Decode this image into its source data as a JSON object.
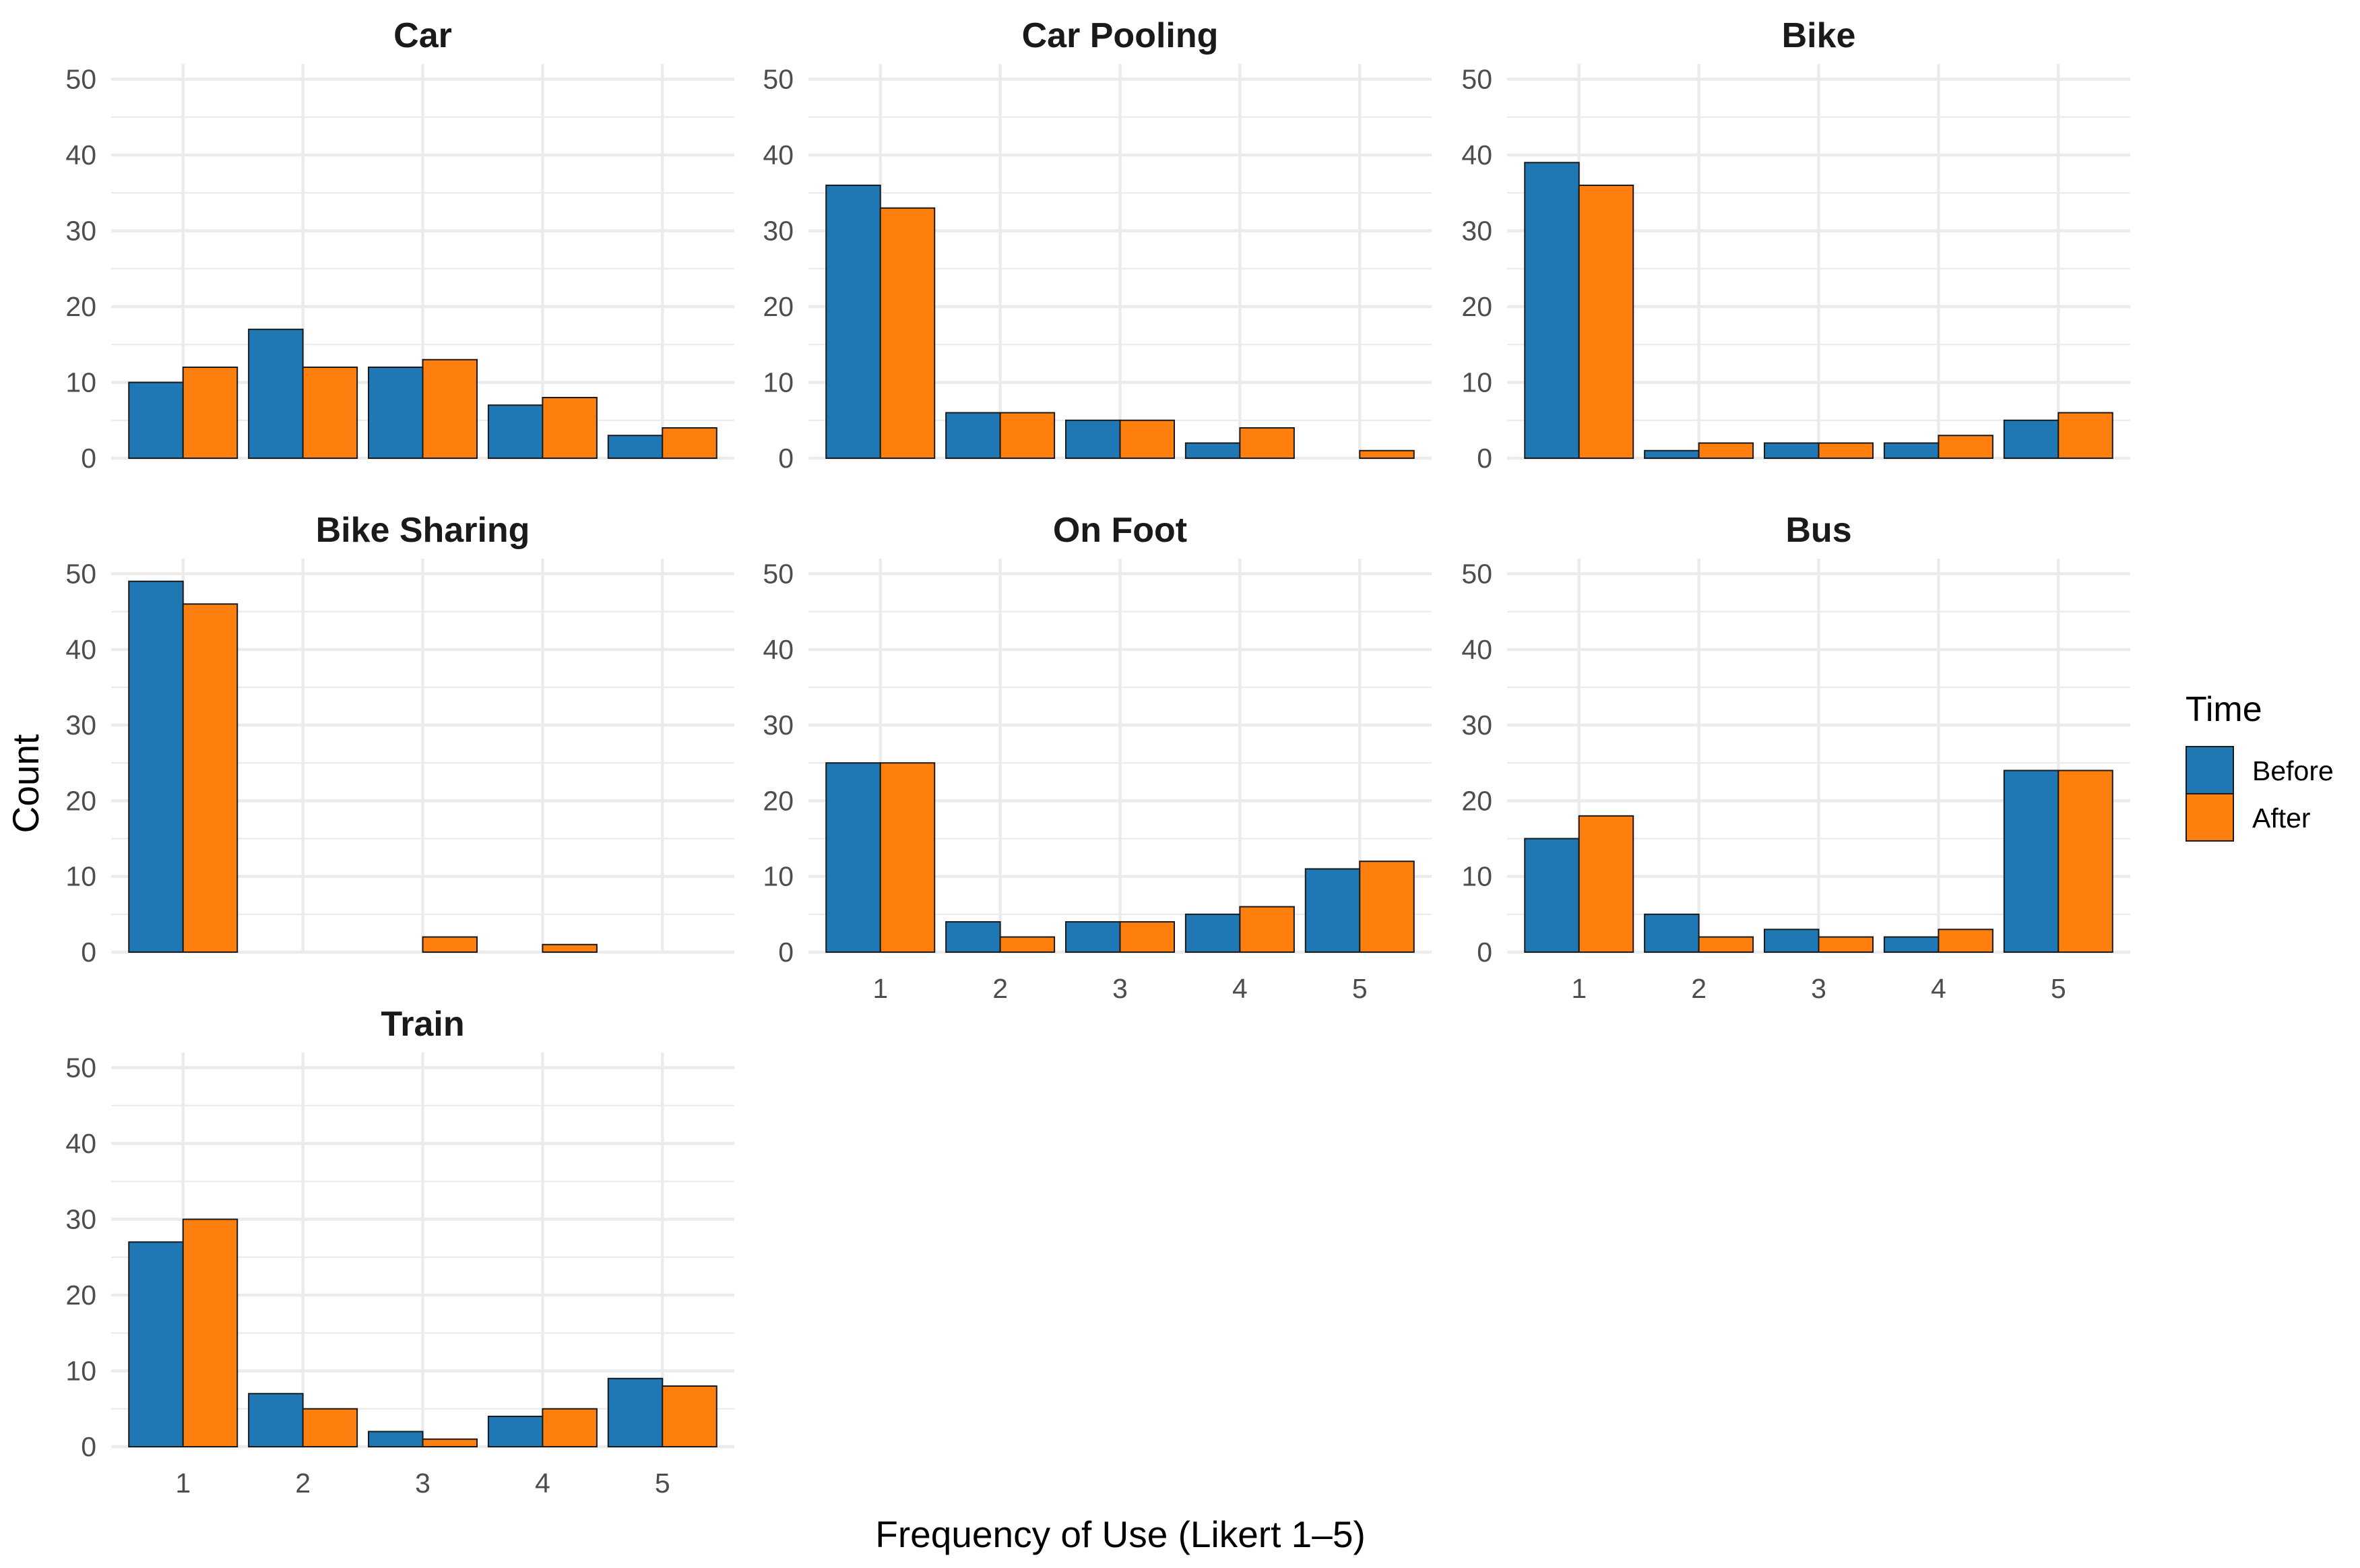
{
  "chart_data": {
    "type": "bar",
    "layout": "facet-grid-3-columns",
    "xlabel": "Frequency of Use (Likert 1–5)",
    "ylabel": "Count",
    "categories": [
      "1",
      "2",
      "3",
      "4",
      "5"
    ],
    "ylim": [
      0,
      52
    ],
    "yticks": [
      0,
      10,
      20,
      30,
      40,
      50
    ],
    "grid": true,
    "legend": {
      "title": "Time",
      "position": "right",
      "entries": [
        {
          "name": "Before",
          "color": "#1f77b4"
        },
        {
          "name": "After",
          "color": "#ff7f0e"
        }
      ]
    },
    "panels": [
      {
        "title": "Car",
        "series": [
          {
            "name": "Before",
            "values": [
              10,
              17,
              12,
              7,
              3
            ]
          },
          {
            "name": "After",
            "values": [
              12,
              12,
              13,
              8,
              4
            ]
          }
        ]
      },
      {
        "title": "Car Pooling",
        "series": [
          {
            "name": "Before",
            "values": [
              36,
              6,
              5,
              2,
              0
            ]
          },
          {
            "name": "After",
            "values": [
              33,
              6,
              5,
              4,
              1
            ]
          }
        ]
      },
      {
        "title": "Bike",
        "series": [
          {
            "name": "Before",
            "values": [
              39,
              1,
              2,
              2,
              5
            ]
          },
          {
            "name": "After",
            "values": [
              36,
              2,
              2,
              3,
              6
            ]
          }
        ]
      },
      {
        "title": "Bike Sharing",
        "series": [
          {
            "name": "Before",
            "values": [
              49,
              0,
              0,
              0,
              0
            ]
          },
          {
            "name": "After",
            "values": [
              46,
              0,
              2,
              1,
              0
            ]
          }
        ]
      },
      {
        "title": "On Foot",
        "series": [
          {
            "name": "Before",
            "values": [
              25,
              4,
              4,
              5,
              11
            ]
          },
          {
            "name": "After",
            "values": [
              25,
              2,
              4,
              6,
              12
            ]
          }
        ]
      },
      {
        "title": "Bus",
        "series": [
          {
            "name": "Before",
            "values": [
              15,
              5,
              3,
              2,
              24
            ]
          },
          {
            "name": "After",
            "values": [
              18,
              2,
              2,
              3,
              24
            ]
          }
        ]
      },
      {
        "title": "Train",
        "series": [
          {
            "name": "Before",
            "values": [
              27,
              7,
              2,
              4,
              9
            ]
          },
          {
            "name": "After",
            "values": [
              30,
              5,
              1,
              5,
              8
            ]
          }
        ]
      }
    ]
  }
}
